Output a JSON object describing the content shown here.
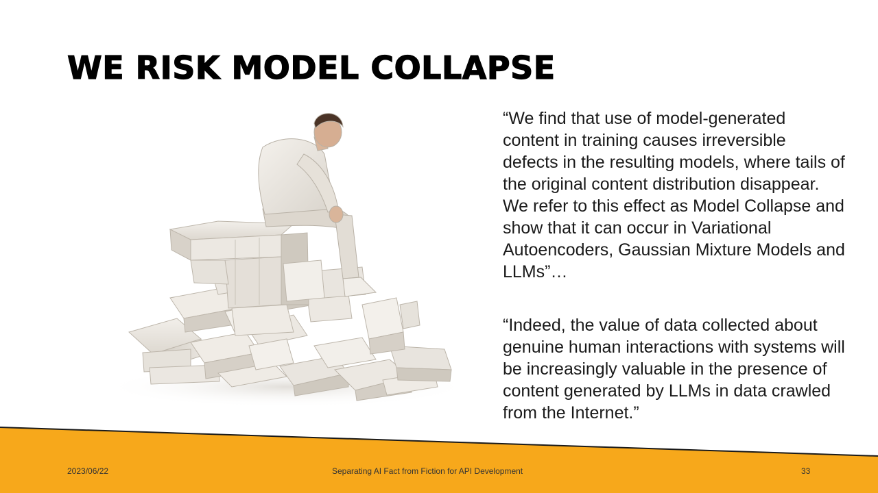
{
  "slide": {
    "title": "WE RISK MODEL COLLAPSE",
    "quotes": [
      "“We find that use of model-generated content in training causes irreversible defects in the resulting models, where tails of the original content distribution disappear. We refer to this effect as Model Collapse and show that it can occur in Variational Autoencoders, Gaussian Mixture Models and LLMs”…",
      "“Indeed, the value of data collected about genuine human interactions with systems will be increasingly valuable in the presence of content generated by LLMs in data crawled from the Internet.”"
    ]
  },
  "footer": {
    "date": "2023/06/22",
    "presentation_title": "Separating AI Fact from Fiction for API Development",
    "page_number": "33"
  },
  "colors": {
    "accent": "#F7A81B",
    "footer_line": "#1a1a1a",
    "title": "#000000",
    "text": "#1a1a1a"
  }
}
